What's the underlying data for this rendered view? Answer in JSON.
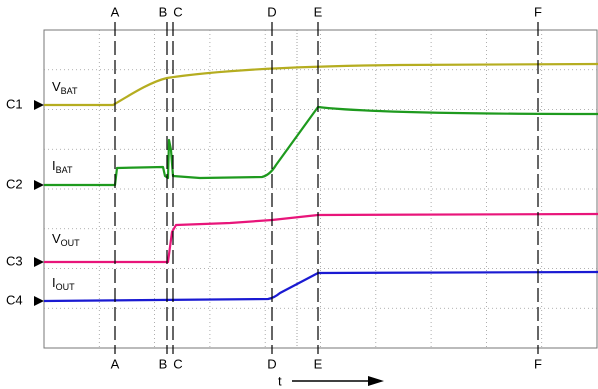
{
  "markers": [
    "A",
    "B",
    "C",
    "D",
    "E",
    "F"
  ],
  "channels": [
    "C1",
    "C2",
    "C3",
    "C4"
  ],
  "traces": [
    {
      "main": "V",
      "sub": "BAT"
    },
    {
      "main": "I",
      "sub": "BAT"
    },
    {
      "main": "V",
      "sub": "OUT"
    },
    {
      "main": "I",
      "sub": "OUT"
    }
  ],
  "time_label": "t"
}
